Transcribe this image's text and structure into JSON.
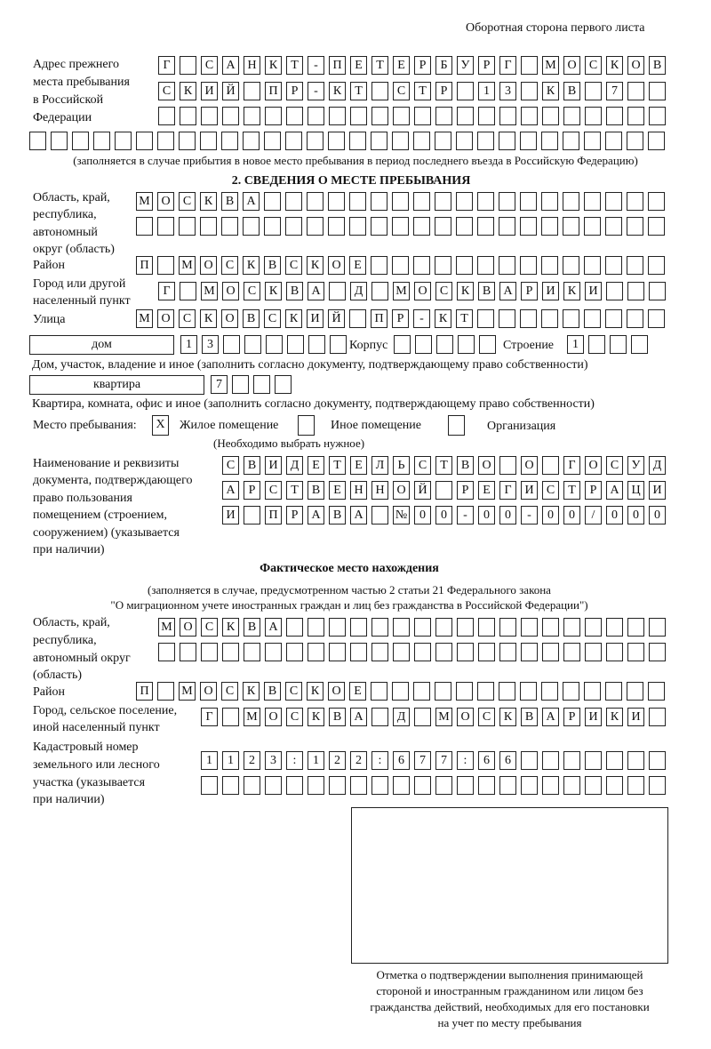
{
  "header": {
    "page_side": "Оборотная сторона первого листа"
  },
  "previous_address": {
    "label": [
      "Адрес прежнего",
      "места пребывания",
      "в Российской",
      "Федерации"
    ],
    "rows": [
      [
        "Г",
        "",
        "С",
        "А",
        "Н",
        "К",
        "Т",
        "-",
        "П",
        "Е",
        "Т",
        "Е",
        "Р",
        "Б",
        "У",
        "Р",
        "Г",
        "",
        "М",
        "О",
        "С",
        "К",
        "О",
        "В"
      ],
      [
        "С",
        "К",
        "И",
        "Й",
        "",
        "П",
        "Р",
        "-",
        "К",
        "Т",
        "",
        "С",
        "Т",
        "Р",
        "",
        "1",
        "3",
        "",
        "К",
        "В",
        "",
        "7",
        "",
        ""
      ],
      [
        "",
        "",
        "",
        "",
        "",
        "",
        "",
        "",
        "",
        "",
        "",
        "",
        "",
        "",
        "",
        "",
        "",
        "",
        "",
        "",
        "",
        "",
        "",
        ""
      ],
      [
        "",
        "",
        "",
        "",
        "",
        "",
        "",
        "",
        "",
        "",
        "",
        "",
        "",
        "",
        "",
        "",
        "",
        "",
        "",
        "",
        "",
        "",
        "",
        "",
        "",
        "",
        "",
        "",
        "",
        ""
      ]
    ],
    "note": "(заполняется в случае прибытия в новое место пребывания в период последнего въезда в Российскую Федерацию)"
  },
  "section2": {
    "title": "2. СВЕДЕНИЯ О МЕСТЕ ПРЕБЫВАНИЯ",
    "region_label": [
      "Область, край,",
      "республика,",
      "автономный",
      "округ (область)"
    ],
    "region_rows": [
      [
        "М",
        "О",
        "С",
        "К",
        "В",
        "А",
        "",
        "",
        "",
        "",
        "",
        "",
        "",
        "",
        "",
        "",
        "",
        "",
        "",
        "",
        "",
        "",
        "",
        "",
        ""
      ],
      [
        "",
        "",
        "",
        "",
        "",
        "",
        "",
        "",
        "",
        "",
        "",
        "",
        "",
        "",
        "",
        "",
        "",
        "",
        "",
        "",
        "",
        "",
        "",
        "",
        ""
      ]
    ],
    "district_label": "Район",
    "district_row": [
      "П",
      "",
      "М",
      "О",
      "С",
      "К",
      "В",
      "С",
      "К",
      "О",
      "Е",
      "",
      "",
      "",
      "",
      "",
      "",
      "",
      "",
      "",
      "",
      "",
      "",
      "",
      ""
    ],
    "city_label": [
      "Город или другой",
      "населенный пункт"
    ],
    "city_row": [
      "Г",
      "",
      "М",
      "О",
      "С",
      "К",
      "В",
      "А",
      "",
      "Д",
      "",
      "М",
      "О",
      "С",
      "К",
      "В",
      "А",
      "Р",
      "И",
      "К",
      "И",
      "",
      "",
      ""
    ],
    "street_label": "Улица",
    "street_row": [
      "М",
      "О",
      "С",
      "К",
      "О",
      "В",
      "С",
      "К",
      "И",
      "Й",
      "",
      "П",
      "Р",
      "-",
      "К",
      "Т",
      "",
      "",
      "",
      "",
      "",
      "",
      "",
      "",
      ""
    ],
    "house_type": "дом",
    "house_cells": [
      "1",
      "3",
      "",
      "",
      "",
      "",
      "",
      ""
    ],
    "korpus_label": "Корпус",
    "korpus_cells": [
      "",
      "",
      "",
      "",
      ""
    ],
    "building_label": "Строение",
    "building_cells": [
      "1",
      "",
      "",
      ""
    ],
    "house_note": "Дом, участок, владение и иное (заполнить согласно документу, подтверждающему право собственности)",
    "apt_type": "квартира",
    "apt_cells": [
      "7",
      "",
      "",
      ""
    ],
    "apt_note": "Квартира, комната, офис и иное (заполнить согласно документу, подтверждающему право собственности)",
    "stay_label": "Место пребывания:",
    "options": [
      {
        "label": "Жилое помещение",
        "mark": "X"
      },
      {
        "label": "Иное помещение",
        "mark": ""
      },
      {
        "label": "Организация",
        "mark": ""
      }
    ],
    "options_note": "(Необходимо выбрать нужное)",
    "doc_label": [
      "Наименование и реквизиты",
      "документа, подтверждающего",
      "право пользования",
      "помещением (строением,",
      "сооружением) (указывается",
      "при наличии)"
    ],
    "doc_rows": [
      [
        "С",
        "В",
        "И",
        "Д",
        "Е",
        "Т",
        "Е",
        "Л",
        "Ь",
        "С",
        "Т",
        "В",
        "О",
        "",
        "О",
        "",
        "Г",
        "О",
        "С",
        "У",
        "Д"
      ],
      [
        "А",
        "Р",
        "С",
        "Т",
        "В",
        "Е",
        "Н",
        "Н",
        "О",
        "Й",
        "",
        "Р",
        "Е",
        "Г",
        "И",
        "С",
        "Т",
        "Р",
        "А",
        "Ц",
        "И"
      ],
      [
        "И",
        "",
        "П",
        "Р",
        "А",
        "В",
        "А",
        "",
        "№",
        "0",
        "0",
        "-",
        "0",
        "0",
        "-",
        "0",
        "0",
        "/",
        "0",
        "0",
        "0"
      ]
    ]
  },
  "actual": {
    "title": "Фактическое место нахождения",
    "note1": "(заполняется в случае, предусмотренном частью 2 статьи 21 Федерального закона",
    "note2": "\"О миграционном учете иностранных граждан и лиц без гражданства в Российской Федерации\")",
    "region_label": [
      "Область, край,",
      "республика,",
      "автономный округ",
      "(область)"
    ],
    "region_rows": [
      [
        "М",
        "О",
        "С",
        "К",
        "В",
        "А",
        "",
        "",
        "",
        "",
        "",
        "",
        "",
        "",
        "",
        "",
        "",
        "",
        "",
        "",
        "",
        "",
        "",
        ""
      ],
      [
        "",
        "",
        "",
        "",
        "",
        "",
        "",
        "",
        "",
        "",
        "",
        "",
        "",
        "",
        "",
        "",
        "",
        "",
        "",
        "",
        "",
        "",
        "",
        ""
      ]
    ],
    "district_label": "Район",
    "district_row": [
      "П",
      "",
      "М",
      "О",
      "С",
      "К",
      "В",
      "С",
      "К",
      "О",
      "Е",
      "",
      "",
      "",
      "",
      "",
      "",
      "",
      "",
      "",
      "",
      "",
      "",
      "",
      ""
    ],
    "city_label": [
      "Город, сельское поселение,",
      "иной населенный пункт"
    ],
    "city_row": [
      "Г",
      "",
      "М",
      "О",
      "С",
      "К",
      "В",
      "А",
      "",
      "Д",
      "",
      "М",
      "О",
      "С",
      "К",
      "В",
      "А",
      "Р",
      "И",
      "К",
      "И",
      ""
    ],
    "cadastral_label": [
      "Кадастровый номер",
      "земельного или лесного",
      "участка (указывается",
      "при наличии)"
    ],
    "cadastral_rows": [
      [
        "1",
        "1",
        "2",
        "3",
        ":",
        "1",
        "2",
        "2",
        ":",
        "6",
        "7",
        "7",
        ":",
        "6",
        "6",
        "",
        "",
        "",
        "",
        "",
        "",
        ""
      ],
      [
        "",
        "",
        "",
        "",
        "",
        "",
        "",
        "",
        "",
        "",
        "",
        "",
        "",
        "",
        "",
        "",
        "",
        "",
        "",
        "",
        "",
        ""
      ]
    ]
  },
  "stamp": {
    "caption": [
      "Отметка о подтверждении выполнения принимающей",
      "стороной и иностранным гражданином или лицом без",
      "гражданства действий, необходимых для его постановки",
      "на учет по месту пребывания"
    ]
  }
}
